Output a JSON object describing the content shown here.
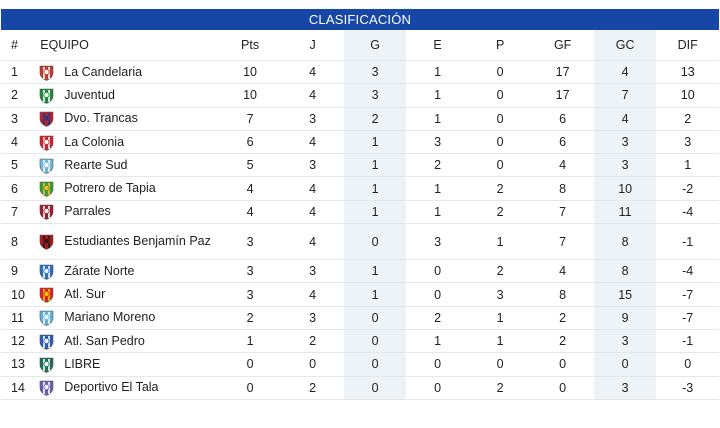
{
  "header": {
    "title": "CLASIFICACIÓN"
  },
  "columns": [
    "#",
    "EQUIPO",
    "Pts",
    "J",
    "G",
    "E",
    "P",
    "GF",
    "GC",
    "DIF"
  ],
  "rows": [
    {
      "pos": "1",
      "team": "La Candelaria",
      "icon": "candelaria-crest-icon",
      "colors": [
        "#c0392b",
        "#ffffff"
      ],
      "pts": "10",
      "j": "4",
      "g": "3",
      "e": "1",
      "p": "0",
      "gf": "17",
      "gc": "4",
      "dif": "13"
    },
    {
      "pos": "2",
      "team": "Juventud",
      "icon": "juventud-crest-icon",
      "colors": [
        "#1e8a3c",
        "#ffffff"
      ],
      "pts": "10",
      "j": "4",
      "g": "3",
      "e": "1",
      "p": "0",
      "gf": "17",
      "gc": "7",
      "dif": "10"
    },
    {
      "pos": "3",
      "team": "Dvo. Trancas",
      "icon": "trancas-crest-icon",
      "colors": [
        "#b22234",
        "#1a3a8a"
      ],
      "pts": "7",
      "j": "3",
      "g": "2",
      "e": "1",
      "p": "0",
      "gf": "6",
      "gc": "4",
      "dif": "2"
    },
    {
      "pos": "4",
      "team": "La Colonia",
      "icon": "colonia-crest-icon",
      "colors": [
        "#d0202e",
        "#ffffff"
      ],
      "pts": "6",
      "j": "4",
      "g": "1",
      "e": "3",
      "p": "0",
      "gf": "6",
      "gc": "3",
      "dif": "3"
    },
    {
      "pos": "5",
      "team": "Rearte Sud",
      "icon": "rearte-crest-icon",
      "colors": [
        "#6fb7d8",
        "#ffffff"
      ],
      "pts": "5",
      "j": "3",
      "g": "1",
      "e": "2",
      "p": "0",
      "gf": "4",
      "gc": "3",
      "dif": "1"
    },
    {
      "pos": "6",
      "team": "Potrero de Tapia",
      "icon": "potrero-crest-icon",
      "colors": [
        "#3c9b3a",
        "#f2c31b"
      ],
      "pts": "4",
      "j": "4",
      "g": "1",
      "e": "1",
      "p": "2",
      "gf": "8",
      "gc": "10",
      "dif": "-2"
    },
    {
      "pos": "7",
      "team": "Parrales",
      "icon": "parrales-crest-icon",
      "colors": [
        "#9b1c2c",
        "#ffffff"
      ],
      "pts": "4",
      "j": "4",
      "g": "1",
      "e": "1",
      "p": "2",
      "gf": "7",
      "gc": "11",
      "dif": "-4"
    },
    {
      "pos": "8",
      "team": "Estudiantes Benjamín Paz",
      "icon": "estudiantes-crest-icon",
      "colors": [
        "#b0161e",
        "#1a1a1a"
      ],
      "pts": "3",
      "j": "4",
      "g": "0",
      "e": "3",
      "p": "1",
      "gf": "7",
      "gc": "8",
      "dif": "-1",
      "tall": true
    },
    {
      "pos": "9",
      "team": "Zárate Norte",
      "icon": "zarate-crest-icon",
      "colors": [
        "#2a6fc9",
        "#ffffff"
      ],
      "pts": "3",
      "j": "3",
      "g": "1",
      "e": "0",
      "p": "2",
      "gf": "4",
      "gc": "8",
      "dif": "-4"
    },
    {
      "pos": "10",
      "team": "Atl. Sur",
      "icon": "atl-sur-crest-icon",
      "colors": [
        "#d8232a",
        "#f5c400"
      ],
      "pts": "3",
      "j": "4",
      "g": "1",
      "e": "0",
      "p": "3",
      "gf": "8",
      "gc": "15",
      "dif": "-7"
    },
    {
      "pos": "11",
      "team": "Mariano Moreno",
      "icon": "mariano-moreno-crest-icon",
      "colors": [
        "#5fb3d9",
        "#ffffff"
      ],
      "pts": "2",
      "j": "3",
      "g": "0",
      "e": "2",
      "p": "1",
      "gf": "2",
      "gc": "9",
      "dif": "-7"
    },
    {
      "pos": "12",
      "team": "Atl. San Pedro",
      "icon": "san-pedro-crest-icon",
      "colors": [
        "#2b5cb8",
        "#ffffff"
      ],
      "pts": "1",
      "j": "2",
      "g": "0",
      "e": "1",
      "p": "1",
      "gf": "2",
      "gc": "3",
      "dif": "-1"
    },
    {
      "pos": "13",
      "team": "LIBRE",
      "icon": "libre-crest-icon",
      "colors": [
        "#1f6e5a",
        "#ffffff"
      ],
      "pts": "0",
      "j": "0",
      "g": "0",
      "e": "0",
      "p": "0",
      "gf": "0",
      "gc": "0",
      "dif": "0"
    },
    {
      "pos": "14",
      "team": "Deportivo El Tala",
      "icon": "el-tala-crest-icon",
      "colors": [
        "#6a5fb0",
        "#ffffff"
      ],
      "pts": "0",
      "j": "2",
      "g": "0",
      "e": "0",
      "p": "2",
      "gf": "0",
      "gc": "3",
      "dif": "-3"
    }
  ],
  "colors": {
    "header_bg": "#1747a6",
    "shaded_column": "#eef3f8",
    "row_border": "#e3e7ee"
  }
}
